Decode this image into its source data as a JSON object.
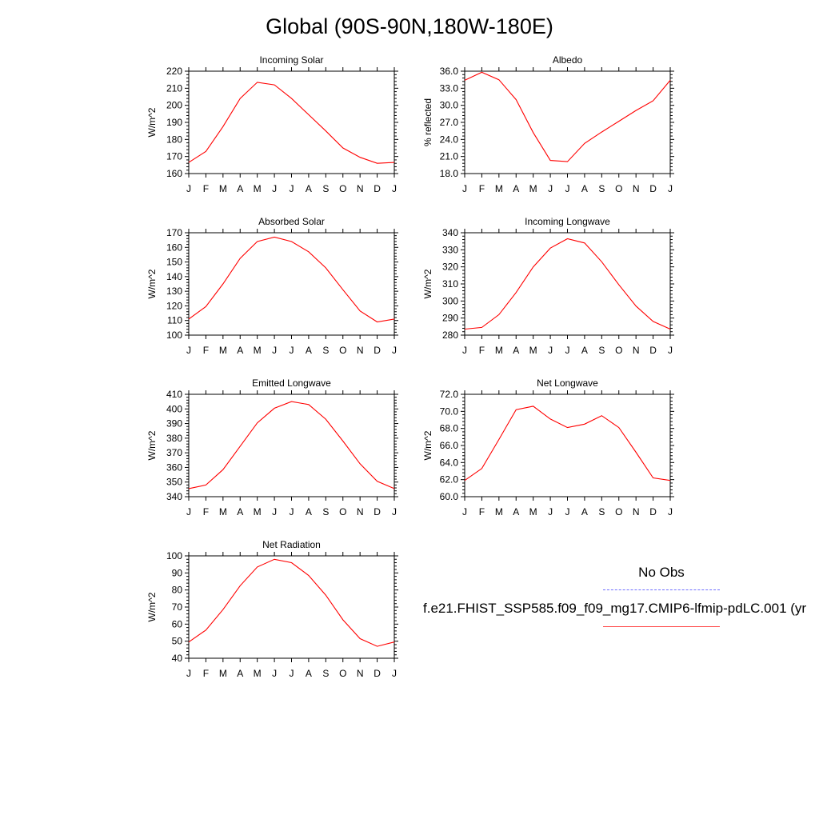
{
  "page_title": "Global (90S-90N,180W-180E)",
  "legend": {
    "obs_label": "No Obs",
    "obs_color": "#6f6fff",
    "model_label": "f.e21.FHIST_SSP585.f09_f09_mg17.CMIP6-lfmip-pdLC.001 (yr",
    "model_color": "#ff0000"
  },
  "chart_data": [
    {
      "type": "line",
      "title": "Incoming Solar",
      "ylabel": "W/m^2",
      "categories": [
        "J",
        "F",
        "M",
        "A",
        "M",
        "J",
        "J",
        "A",
        "S",
        "O",
        "N",
        "D",
        "J"
      ],
      "ylim": [
        160,
        220
      ],
      "yticks": [
        160,
        170,
        180,
        190,
        200,
        210,
        220
      ],
      "ytick_labels": [
        "160",
        "170",
        "180",
        "190",
        "200",
        "210",
        "220"
      ],
      "series": [
        {
          "values": [
            166.5,
            173,
            187.5,
            204,
            213.5,
            212,
            204,
            194.5,
            185,
            175,
            169.5,
            166,
            166.5
          ],
          "color": "#ff0000"
        }
      ]
    },
    {
      "type": "line",
      "title": "Albedo",
      "ylabel": "% reflected",
      "categories": [
        "J",
        "F",
        "M",
        "A",
        "M",
        "J",
        "J",
        "A",
        "S",
        "O",
        "N",
        "D",
        "J"
      ],
      "ylim": [
        18,
        36
      ],
      "yticks": [
        18,
        21,
        24,
        27,
        30,
        33,
        36
      ],
      "ytick_labels": [
        "18.0",
        "21.0",
        "24.0",
        "27.0",
        "30.0",
        "33.0",
        "36.0"
      ],
      "series": [
        {
          "values": [
            34.4,
            35.8,
            34.5,
            31,
            25.2,
            20.3,
            20.1,
            23.3,
            25.3,
            27.2,
            29.1,
            30.8,
            34.4
          ],
          "color": "#ff0000"
        }
      ]
    },
    {
      "type": "line",
      "title": "Absorbed Solar",
      "ylabel": "W/m^2",
      "categories": [
        "J",
        "F",
        "M",
        "A",
        "M",
        "J",
        "J",
        "A",
        "S",
        "O",
        "N",
        "D",
        "J"
      ],
      "ylim": [
        100,
        170
      ],
      "yticks": [
        100,
        110,
        120,
        130,
        140,
        150,
        160,
        170
      ],
      "ytick_labels": [
        "100",
        "110",
        "120",
        "130",
        "140",
        "150",
        "160",
        "170"
      ],
      "series": [
        {
          "values": [
            111,
            119.5,
            135,
            152.5,
            164,
            167,
            164,
            157,
            146,
            131,
            116.5,
            109,
            111
          ],
          "color": "#ff0000"
        }
      ]
    },
    {
      "type": "line",
      "title": "Incoming Longwave",
      "ylabel": "W/m^2",
      "categories": [
        "J",
        "F",
        "M",
        "A",
        "M",
        "J",
        "J",
        "A",
        "S",
        "O",
        "N",
        "D",
        "J"
      ],
      "ylim": [
        280,
        340
      ],
      "yticks": [
        280,
        290,
        300,
        310,
        320,
        330,
        340
      ],
      "ytick_labels": [
        "280",
        "290",
        "300",
        "310",
        "320",
        "330",
        "340"
      ],
      "series": [
        {
          "values": [
            283.5,
            284.5,
            292,
            305,
            320,
            331,
            336.5,
            334,
            323,
            309.5,
            297,
            288,
            283.5
          ],
          "color": "#ff0000"
        }
      ]
    },
    {
      "type": "line",
      "title": "Emitted Longwave",
      "ylabel": "W/m^2",
      "categories": [
        "J",
        "F",
        "M",
        "A",
        "M",
        "J",
        "J",
        "A",
        "S",
        "O",
        "N",
        "D",
        "J"
      ],
      "ylim": [
        340,
        410
      ],
      "yticks": [
        340,
        350,
        360,
        370,
        380,
        390,
        400,
        410
      ],
      "ytick_labels": [
        "340",
        "350",
        "360",
        "370",
        "380",
        "390",
        "400",
        "410"
      ],
      "series": [
        {
          "values": [
            345.5,
            348,
            358.5,
            374.5,
            390.5,
            400.5,
            405,
            403,
            393,
            378,
            362.5,
            350.5,
            345.5
          ],
          "color": "#ff0000"
        }
      ]
    },
    {
      "type": "line",
      "title": "Net Longwave",
      "ylabel": "W/m^2",
      "categories": [
        "J",
        "F",
        "M",
        "A",
        "M",
        "J",
        "J",
        "A",
        "S",
        "O",
        "N",
        "D",
        "J"
      ],
      "ylim": [
        60,
        72
      ],
      "yticks": [
        60,
        62,
        64,
        66,
        68,
        70,
        72
      ],
      "ytick_labels": [
        "60.0",
        "62.0",
        "64.0",
        "66.0",
        "68.0",
        "70.0",
        "72.0"
      ],
      "series": [
        {
          "values": [
            61.9,
            63.3,
            66.7,
            70.2,
            70.6,
            69.1,
            68.1,
            68.5,
            69.5,
            68.1,
            65.2,
            62.2,
            61.9
          ],
          "color": "#ff0000"
        }
      ]
    },
    {
      "type": "line",
      "title": "Net Radiation",
      "ylabel": "W/m^2",
      "categories": [
        "J",
        "F",
        "M",
        "A",
        "M",
        "J",
        "J",
        "A",
        "S",
        "O",
        "N",
        "D",
        "J"
      ],
      "ylim": [
        40,
        100
      ],
      "yticks": [
        40,
        50,
        60,
        70,
        80,
        90,
        100
      ],
      "ytick_labels": [
        "40",
        "50",
        "60",
        "70",
        "80",
        "90",
        "100"
      ],
      "series": [
        {
          "values": [
            49.5,
            56.5,
            68.5,
            82.5,
            93.5,
            98,
            96,
            88.5,
            77,
            62.5,
            51.5,
            47,
            49.5
          ],
          "color": "#ff0000"
        }
      ]
    }
  ]
}
